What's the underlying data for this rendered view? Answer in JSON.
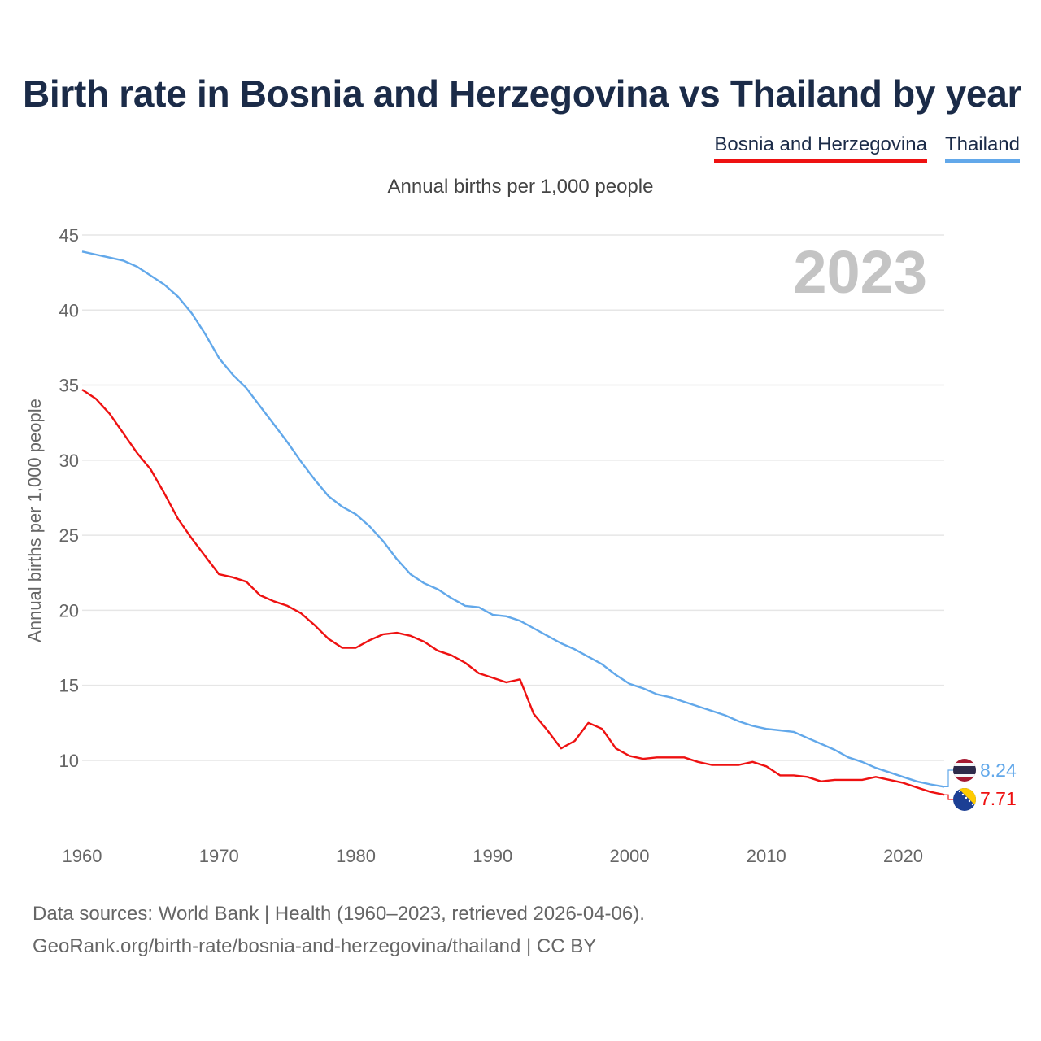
{
  "title": "Birth rate in Bosnia and Herzegovina vs Thailand by year",
  "subtitle": "Annual births per 1,000 people",
  "legend": [
    {
      "label": "Bosnia and Herzegovina",
      "color": "#ee1111"
    },
    {
      "label": "Thailand",
      "color": "#62a8ea"
    }
  ],
  "year_label": "2023",
  "footer": {
    "line1": "Data sources: World Bank | Health (1960–2023, retrieved 2026-04-06).",
    "line2": "GeoRank.org/birth-rate/bosnia-and-herzegovina/thailand | CC BY"
  },
  "chart_data": {
    "type": "line",
    "title": "Birth rate in Bosnia and Herzegovina vs Thailand by year",
    "ylabel": "Annual births per 1,000 people",
    "xlabel": "",
    "xlim": [
      1960,
      2023
    ],
    "ylim": [
      5.5,
      45
    ],
    "x_ticks": [
      1960,
      1970,
      1980,
      1990,
      2000,
      2010,
      2020
    ],
    "y_ticks": [
      10,
      15,
      20,
      25,
      30,
      35,
      40,
      45
    ],
    "grid": true,
    "x": [
      1960,
      1961,
      1962,
      1963,
      1964,
      1965,
      1966,
      1967,
      1968,
      1969,
      1970,
      1971,
      1972,
      1973,
      1974,
      1975,
      1976,
      1977,
      1978,
      1979,
      1980,
      1981,
      1982,
      1983,
      1984,
      1985,
      1986,
      1987,
      1988,
      1989,
      1990,
      1991,
      1992,
      1993,
      1994,
      1995,
      1996,
      1997,
      1998,
      1999,
      2000,
      2001,
      2002,
      2003,
      2004,
      2005,
      2006,
      2007,
      2008,
      2009,
      2010,
      2011,
      2012,
      2013,
      2014,
      2015,
      2016,
      2017,
      2018,
      2019,
      2020,
      2021,
      2022,
      2023
    ],
    "series": [
      {
        "name": "Thailand",
        "color": "#62a8ea",
        "end_label": "8.24",
        "values": [
          43.9,
          43.7,
          43.5,
          43.3,
          42.9,
          42.3,
          41.7,
          40.9,
          39.8,
          38.4,
          36.8,
          35.7,
          34.8,
          33.6,
          32.4,
          31.2,
          29.9,
          28.7,
          27.6,
          26.9,
          26.4,
          25.6,
          24.6,
          23.4,
          22.4,
          21.8,
          21.4,
          20.8,
          20.3,
          20.2,
          19.7,
          19.6,
          19.3,
          18.8,
          18.3,
          17.8,
          17.4,
          16.9,
          16.4,
          15.7,
          15.1,
          14.8,
          14.4,
          14.2,
          13.9,
          13.6,
          13.3,
          13.0,
          12.6,
          12.3,
          12.1,
          12.0,
          11.9,
          11.5,
          11.1,
          10.7,
          10.2,
          9.9,
          9.5,
          9.2,
          8.9,
          8.6,
          8.4,
          8.24
        ]
      },
      {
        "name": "Bosnia and Herzegovina",
        "color": "#ee1111",
        "end_label": "7.71",
        "values": [
          34.7,
          34.1,
          33.1,
          31.8,
          30.5,
          29.4,
          27.8,
          26.1,
          24.8,
          23.6,
          22.4,
          22.2,
          21.9,
          21.0,
          20.6,
          20.3,
          19.8,
          19.0,
          18.1,
          17.5,
          17.5,
          18.0,
          18.4,
          18.5,
          18.3,
          17.9,
          17.3,
          17.0,
          16.5,
          15.8,
          15.5,
          15.2,
          15.4,
          13.1,
          12.0,
          10.8,
          11.3,
          12.5,
          12.1,
          10.8,
          10.3,
          10.1,
          10.2,
          10.2,
          10.2,
          9.9,
          9.7,
          9.7,
          9.7,
          9.9,
          9.6,
          9.0,
          9.0,
          8.9,
          8.6,
          8.7,
          8.7,
          8.7,
          8.9,
          8.7,
          8.5,
          8.2,
          7.9,
          7.71
        ]
      }
    ]
  }
}
